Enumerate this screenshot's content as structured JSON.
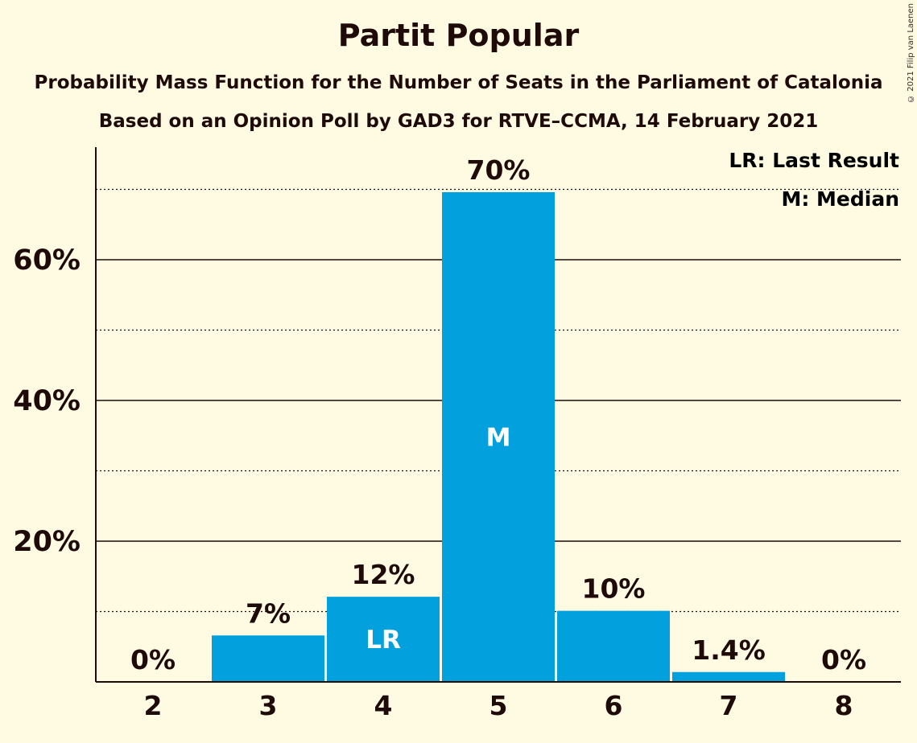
{
  "title": "Partit Popular",
  "subtitle1": "Probability Mass Function for the Number of Seats in the Parliament of Catalonia",
  "subtitle2": "Based on an Opinion Poll by GAD3 for RTVE–CCMA, 14 February 2021",
  "copyright": "© 2021 Filip van Laenen",
  "legend": {
    "lr": "LR: Last Result",
    "m": "M: Median"
  },
  "colors": {
    "bar": "#02a1de",
    "background": "#fffbe3",
    "text": "#1f0a0a"
  },
  "chart_data": {
    "type": "bar",
    "categories": [
      "2",
      "3",
      "4",
      "5",
      "6",
      "7",
      "8"
    ],
    "values": [
      0,
      6.6,
      12.1,
      69.6,
      10.1,
      1.4,
      0
    ],
    "data_labels": [
      "0%",
      "7%",
      "12%",
      "70%",
      "10%",
      "1.4%",
      "0%"
    ],
    "bar_markers": [
      "",
      "",
      "LR",
      "M",
      "",
      "",
      ""
    ],
    "ylim": [
      0,
      76
    ],
    "yticks": [
      20,
      40,
      60
    ],
    "ytick_labels": [
      "20%",
      "40%",
      "60%"
    ],
    "minor_gridlines": [
      10,
      30,
      50,
      70
    ],
    "legend_position": "top-right"
  }
}
